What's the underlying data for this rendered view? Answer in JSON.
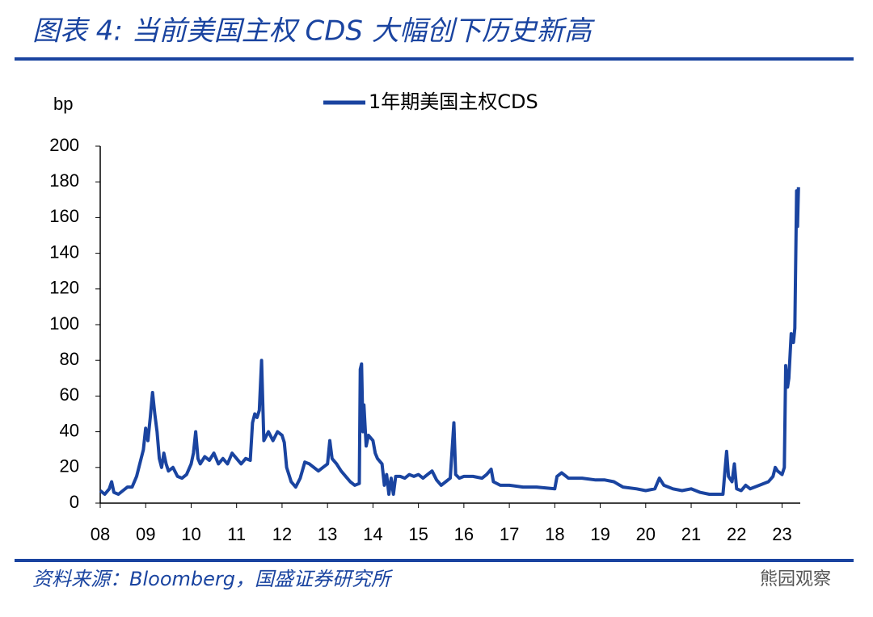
{
  "chart_data": {
    "type": "line",
    "title": "图表 4:  当前美国主权 CDS 大幅创下历史新高",
    "y_label": "bp",
    "source": "资料来源：Bloomberg，国盛证券研究所",
    "watermark": "熊园观察",
    "xlim": [
      8,
      23.4
    ],
    "xticks": [
      {
        "value": 8,
        "label": "08"
      },
      {
        "value": 9,
        "label": "09"
      },
      10,
      11,
      12,
      13,
      14,
      15,
      16,
      17,
      18,
      19,
      20,
      21,
      22,
      23
    ],
    "ylim": [
      0,
      200
    ],
    "yticks": [
      0,
      20,
      40,
      60,
      80,
      100,
      120,
      140,
      160,
      180,
      200
    ],
    "legend": "top",
    "x": [
      8.0,
      8.1,
      8.2,
      8.25,
      8.3,
      8.4,
      8.5,
      8.6,
      8.7,
      8.8,
      8.9,
      8.95,
      9.0,
      9.05,
      9.1,
      9.15,
      9.2,
      9.25,
      9.3,
      9.35,
      9.4,
      9.45,
      9.5,
      9.6,
      9.7,
      9.8,
      9.9,
      10.0,
      10.05,
      10.1,
      10.15,
      10.2,
      10.3,
      10.4,
      10.5,
      10.6,
      10.7,
      10.8,
      10.9,
      11.0,
      11.1,
      11.2,
      11.3,
      11.35,
      11.4,
      11.45,
      11.5,
      11.55,
      11.6,
      11.7,
      11.8,
      11.9,
      12.0,
      12.05,
      12.1,
      12.2,
      12.3,
      12.4,
      12.5,
      12.6,
      12.7,
      12.8,
      12.9,
      13.0,
      13.05,
      13.1,
      13.2,
      13.3,
      13.4,
      13.5,
      13.6,
      13.7,
      13.72,
      13.75,
      13.78,
      13.8,
      13.85,
      13.9,
      14.0,
      14.05,
      14.1,
      14.2,
      14.25,
      14.3,
      14.35,
      14.4,
      14.45,
      14.5,
      14.6,
      14.7,
      14.8,
      14.9,
      15.0,
      15.1,
      15.2,
      15.3,
      15.4,
      15.5,
      15.6,
      15.7,
      15.78,
      15.82,
      15.9,
      16.0,
      16.2,
      16.4,
      16.5,
      16.6,
      16.65,
      16.8,
      17.0,
      17.3,
      17.6,
      18.0,
      18.05,
      18.15,
      18.3,
      18.6,
      18.9,
      19.1,
      19.3,
      19.5,
      19.8,
      20.0,
      20.2,
      20.3,
      20.4,
      20.6,
      20.8,
      21.0,
      21.2,
      21.4,
      21.7,
      21.75,
      21.78,
      21.82,
      21.9,
      21.95,
      22.0,
      22.1,
      22.2,
      22.3,
      22.5,
      22.7,
      22.8,
      22.85,
      22.9,
      23.0,
      23.05,
      23.08,
      23.12,
      23.15,
      23.2,
      23.25,
      23.28,
      23.32,
      23.34,
      23.36
    ],
    "series": [
      {
        "name": "1年期美国主权CDS",
        "color": "#1a44a0",
        "values": [
          7,
          5,
          8,
          12,
          6,
          5,
          7,
          9,
          9,
          15,
          25,
          30,
          42,
          35,
          48,
          62,
          50,
          40,
          25,
          20,
          28,
          22,
          18,
          20,
          15,
          14,
          16,
          22,
          28,
          40,
          25,
          22,
          26,
          24,
          28,
          22,
          25,
          22,
          28,
          25,
          22,
          25,
          24,
          45,
          50,
          48,
          52,
          80,
          35,
          40,
          35,
          40,
          38,
          34,
          20,
          12,
          9,
          14,
          23,
          22,
          20,
          18,
          20,
          22,
          35,
          25,
          22,
          18,
          15,
          12,
          10,
          11,
          75,
          78,
          40,
          55,
          32,
          38,
          35,
          28,
          25,
          22,
          10,
          16,
          5,
          14,
          5,
          15,
          15,
          14,
          16,
          15,
          16,
          14,
          16,
          18,
          13,
          10,
          12,
          14,
          45,
          16,
          14,
          15,
          15,
          14,
          16,
          19,
          12,
          10,
          10,
          9,
          9,
          8,
          15,
          17,
          14,
          14,
          13,
          13,
          12,
          9,
          8,
          7,
          8,
          14,
          10,
          8,
          7,
          8,
          6,
          5,
          5,
          20,
          29,
          15,
          12,
          22,
          8,
          7,
          10,
          8,
          10,
          12,
          15,
          20,
          18,
          16,
          20,
          77,
          65,
          70,
          95,
          90,
          98,
          175,
          155,
          177
        ]
      }
    ]
  }
}
